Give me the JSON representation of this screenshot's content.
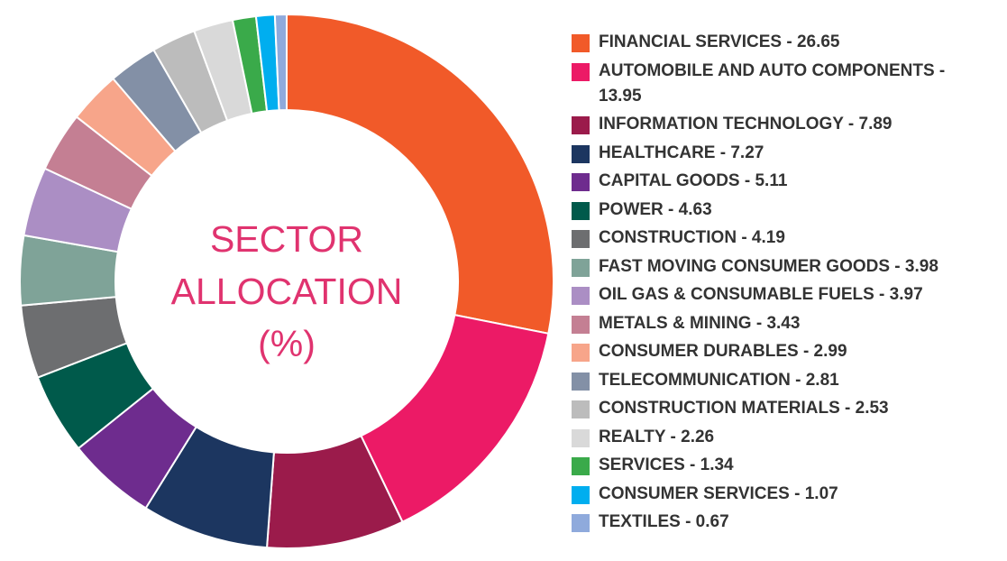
{
  "chart_data": {
    "type": "donut",
    "title": "SECTOR ALLOCATION (%)",
    "title_color": "#e0336f",
    "categories": [
      "FINANCIAL SERVICES - 26.65",
      "AUTOMOBILE AND AUTO COMPONENTS - 13.95",
      "INFORMATION TECHNOLOGY - 7.89",
      "HEALTHCARE - 7.27",
      "CAPITAL GOODS - 5.11",
      "POWER - 4.63",
      "CONSTRUCTION - 4.19",
      "FAST MOVING CONSUMER GOODS - 3.98",
      "OIL GAS & CONSUMABLE FUELS - 3.97",
      "METALS & MINING - 3.43",
      "CONSUMER DURABLES - 2.99",
      "TELECOMMUNICATION - 2.81",
      "CONSTRUCTION MATERIALS - 2.53",
      "REALTY  - 2.26",
      "SERVICES  - 1.34",
      "CONSUMER SERVICES  - 1.07",
      "TEXTILES  - 0.67"
    ],
    "values": [
      26.65,
      13.95,
      7.89,
      7.27,
      5.11,
      4.63,
      4.19,
      3.98,
      3.97,
      3.43,
      2.99,
      2.81,
      2.53,
      2.26,
      1.34,
      1.07,
      0.67
    ],
    "colors": [
      "#f15a29",
      "#ec1a66",
      "#9b1b4b",
      "#1c3660",
      "#6e2c8e",
      "#005a4b",
      "#6d6e70",
      "#7fa398",
      "#ab8ec4",
      "#c47f93",
      "#f7a58a",
      "#8390a6",
      "#bcbcbc",
      "#d9d9d9",
      "#3aaa4a",
      "#00aeef",
      "#8faadc"
    ]
  }
}
